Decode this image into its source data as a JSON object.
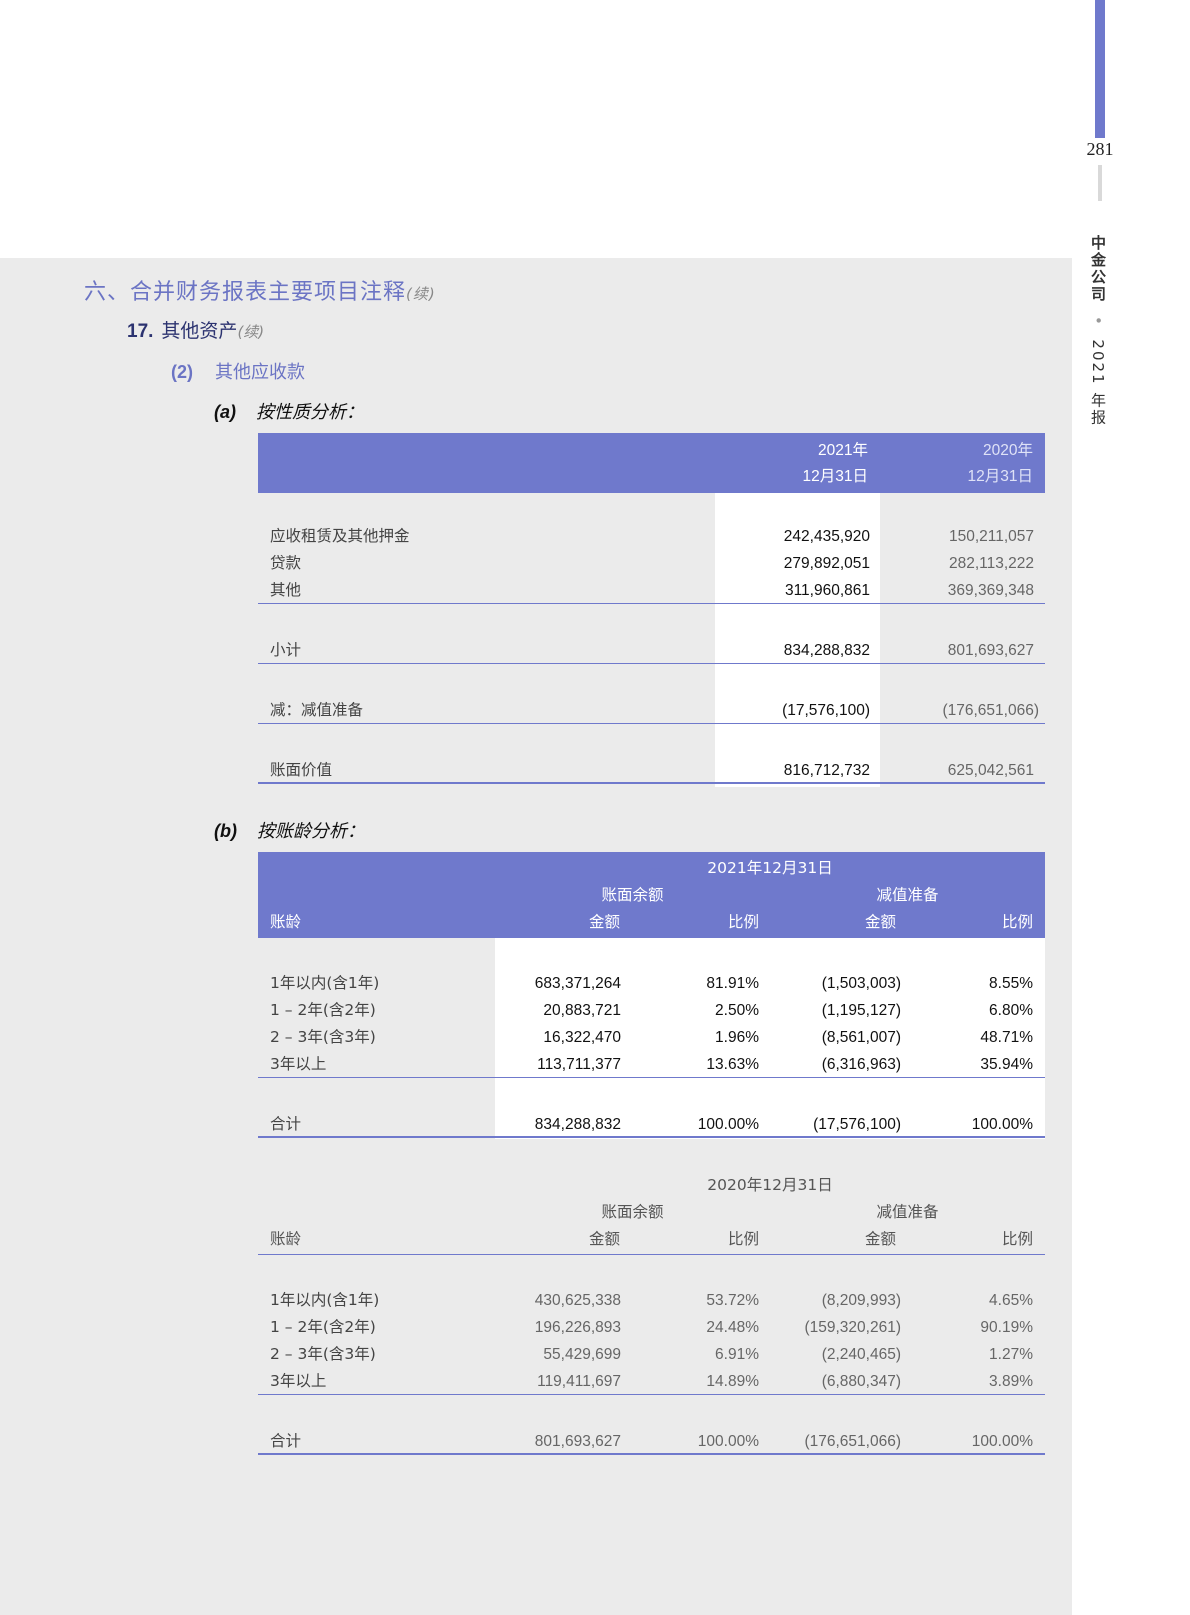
{
  "sidebar": {
    "page_number": "281",
    "company": "中金公司",
    "separator": "•",
    "report": "2021 年报",
    "accent": "#6f79cc"
  },
  "heading": {
    "section": "六、合并财务报表主要项目注释",
    "continued": "(续)",
    "sub_number": "17.",
    "sub_title": "其他资产",
    "sub_continued": "(续)",
    "item_number": "(2)",
    "item_title": "其他应收款"
  },
  "table_a": {
    "title_number": "(a)",
    "title": "按性质分析：",
    "col_2021": [
      "2021年",
      "12月31日"
    ],
    "col_2020": [
      "2020年",
      "12月31日"
    ],
    "rows": [
      {
        "label": "应收租赁及其他押金",
        "v2021": "242,435,920",
        "v2020": "150,211,057"
      },
      {
        "label": "贷款",
        "v2021": "279,892,051",
        "v2020": "282,113,222"
      },
      {
        "label": "其他",
        "v2021": "311,960,861",
        "v2020": "369,369,348"
      }
    ],
    "subtotal": {
      "label": "小计",
      "v2021": "834,288,832",
      "v2020": "801,693,627"
    },
    "impairment": {
      "label": "减：减值准备",
      "v2021": "(17,576,100)",
      "v2020": "(176,651,066)"
    },
    "book_value": {
      "label": "账面价值",
      "v2021": "816,712,732",
      "v2020": "625,042,561"
    }
  },
  "table_b": {
    "title_number": "(b)",
    "title": "按账龄分析：",
    "date": "2021年12月31日",
    "group1": "账面余额",
    "group2": "减值准备",
    "col_label": "账龄",
    "col_amount": "金额",
    "col_ratio": "比例",
    "rows": [
      {
        "label": "1年以内(含1年)",
        "amount": "683,371,264",
        "ratio": "81.91%",
        "imp": "(1,503,003)",
        "imp_ratio": "8.55%"
      },
      {
        "label": "1 – 2年(含2年)",
        "amount": "20,883,721",
        "ratio": "2.50%",
        "imp": "(1,195,127)",
        "imp_ratio": "6.80%"
      },
      {
        "label": "2 – 3年(含3年)",
        "amount": "16,322,470",
        "ratio": "1.96%",
        "imp": "(8,561,007)",
        "imp_ratio": "48.71%"
      },
      {
        "label": "3年以上",
        "amount": "113,711,377",
        "ratio": "13.63%",
        "imp": "(6,316,963)",
        "imp_ratio": "35.94%"
      }
    ],
    "total": {
      "label": "合计",
      "amount": "834,288,832",
      "ratio": "100.00%",
      "imp": "(17,576,100)",
      "imp_ratio": "100.00%"
    }
  },
  "table_c": {
    "date": "2020年12月31日",
    "group1": "账面余额",
    "group2": "减值准备",
    "col_label": "账龄",
    "col_amount": "金额",
    "col_ratio": "比例",
    "rows": [
      {
        "label": "1年以内(含1年)",
        "amount": "430,625,338",
        "ratio": "53.72%",
        "imp": "(8,209,993)",
        "imp_ratio": "4.65%"
      },
      {
        "label": "1 – 2年(含2年)",
        "amount": "196,226,893",
        "ratio": "24.48%",
        "imp": "(159,320,261)",
        "imp_ratio": "90.19%"
      },
      {
        "label": "2 – 3年(含3年)",
        "amount": "55,429,699",
        "ratio": "6.91%",
        "imp": "(2,240,465)",
        "imp_ratio": "1.27%"
      },
      {
        "label": "3年以上",
        "amount": "119,411,697",
        "ratio": "14.89%",
        "imp": "(6,880,347)",
        "imp_ratio": "3.89%"
      }
    ],
    "total": {
      "label": "合计",
      "amount": "801,693,627",
      "ratio": "100.00%",
      "imp": "(176,651,066)",
      "imp_ratio": "100.00%"
    }
  }
}
